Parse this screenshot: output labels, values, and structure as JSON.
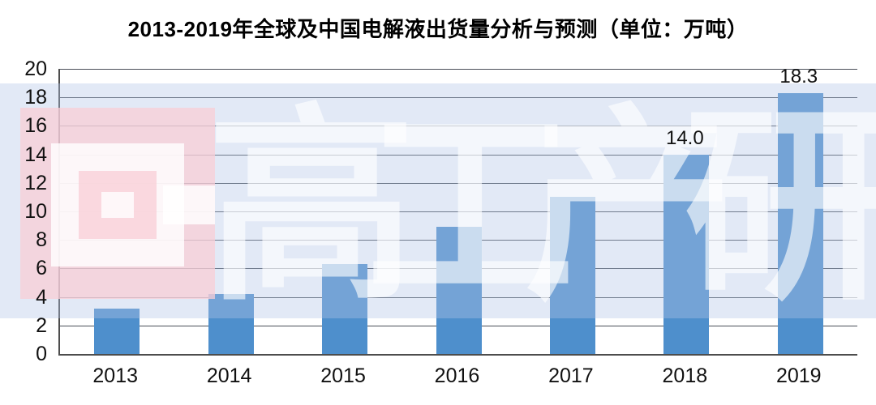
{
  "title": "2013-2019年全球及中国电解液出货量分析与预测（单位：万吨）",
  "chart_data": {
    "type": "bar",
    "title": "2013-2019年全球及中国电解液出货量分析与预测（单位：万吨）",
    "categories": [
      "2013",
      "2014",
      "2015",
      "2016",
      "2017",
      "2018",
      "2019"
    ],
    "values": [
      3.2,
      4.2,
      6.3,
      8.9,
      11.0,
      14.0,
      18.3
    ],
    "data_labels": [
      "",
      "",
      "",
      "",
      "",
      "14.0",
      "18.3"
    ],
    "xlabel": "",
    "ylabel": "",
    "unit": "万吨",
    "ylim": [
      0,
      20
    ],
    "ytick_step": 2,
    "yticks": [
      0,
      2,
      4,
      6,
      8,
      10,
      12,
      14,
      16,
      18,
      20
    ],
    "grid": true,
    "legend": false,
    "bar_color": "#4E8FCC"
  },
  "watermark": {
    "text": "高工产研",
    "logo": "ggii-square-logo",
    "band_color": "rgba(180,198,232,0.38)",
    "logo_pink": "rgba(248,205,214,0.75)",
    "logo_white": "rgba(255,255,255,0.8)"
  }
}
